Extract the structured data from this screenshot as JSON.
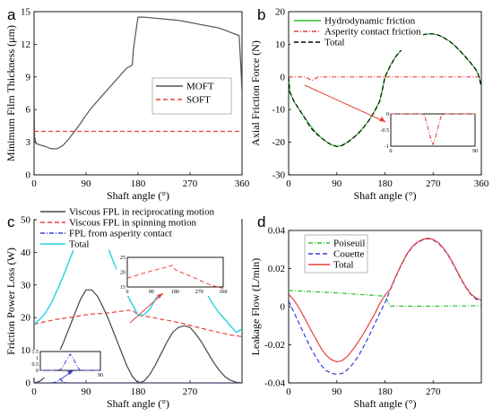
{
  "chart_data": [
    {
      "panel": "a",
      "type": "line",
      "xlabel": "Shaft angle (°)",
      "ylabel": "Minimum Film Thickness (μm)",
      "xlim": [
        0,
        360
      ],
      "ylim": [
        0,
        15
      ],
      "xticks": [
        "0",
        "90",
        "180",
        "270",
        "360"
      ],
      "yticks": [
        "0",
        "3",
        "6",
        "9",
        "12",
        "15"
      ],
      "legend_position": "center-right",
      "colors": {
        "MOFT": "#555555",
        "SOFT": "#e8413c"
      },
      "series": [
        {
          "name": "MOFT",
          "style": "solid",
          "x": [
            0,
            1,
            3,
            10,
            20,
            30,
            40,
            50,
            60,
            70,
            80,
            90,
            100,
            110,
            120,
            130,
            140,
            150,
            160,
            170,
            172,
            178,
            180,
            185,
            190,
            200,
            210,
            220,
            230,
            240,
            250,
            260,
            270,
            280,
            290,
            300,
            310,
            320,
            330,
            340,
            350,
            355,
            358,
            360
          ],
          "y": [
            7.4,
            3.5,
            2.9,
            2.75,
            2.6,
            2.4,
            2.4,
            2.7,
            3.3,
            4.0,
            4.7,
            5.5,
            6.2,
            6.8,
            7.4,
            8.0,
            8.6,
            9.2,
            9.8,
            10.1,
            11.5,
            13.8,
            14.5,
            14.5,
            14.5,
            14.45,
            14.4,
            14.35,
            14.3,
            14.25,
            14.2,
            14.1,
            14.0,
            13.9,
            13.8,
            13.7,
            13.6,
            13.5,
            13.3,
            13.1,
            12.9,
            12.8,
            10.0,
            7.5
          ]
        },
        {
          "name": "SOFT",
          "style": "dashed",
          "x": [
            0,
            360
          ],
          "y": [
            4.0,
            4.0
          ]
        }
      ]
    },
    {
      "panel": "b",
      "type": "line",
      "xlabel": "Shaft angle (°)",
      "ylabel": "Axial Friction Force (N)",
      "xlim": [
        0,
        360
      ],
      "ylim": [
        -30,
        20
      ],
      "xticks": [
        "0",
        "90",
        "180",
        "270",
        "360"
      ],
      "yticks": [
        "-30",
        "-20",
        "-10",
        "0",
        "10",
        "20"
      ],
      "legend_position": "top-left",
      "colors": {
        "Hydrodynamic friction": "#2ec02e",
        "Asperity contact friction": "#e8413c",
        "Total": "#000000"
      },
      "series": [
        {
          "name": "Hydrodynamic friction",
          "style": "solid",
          "x": [
            0,
            2,
            10,
            20,
            30,
            40,
            50,
            60,
            70,
            80,
            90,
            100,
            110,
            120,
            130,
            140,
            150,
            160,
            170,
            175,
            180,
            190,
            200,
            210,
            220,
            230,
            240,
            250,
            260,
            270,
            280,
            290,
            300,
            310,
            320,
            330,
            340,
            350,
            355,
            360
          ],
          "y": [
            0,
            -4.5,
            -7.5,
            -10,
            -12.5,
            -14.8,
            -16.8,
            -18.5,
            -19.8,
            -20.8,
            -21.3,
            -21.0,
            -20.0,
            -18.8,
            -17.3,
            -15.5,
            -13.3,
            -10.7,
            -7.5,
            -4,
            0,
            3.5,
            6.2,
            8.2,
            9.9,
            11.3,
            12.3,
            12.9,
            13.2,
            13.2,
            12.8,
            12.0,
            11.0,
            9.7,
            8.0,
            6.2,
            4.3,
            2.2,
            0.5,
            -3
          ]
        },
        {
          "name": "Asperity contact friction",
          "style": "dashdot",
          "x": [
            0,
            30,
            35,
            40,
            45,
            50,
            55,
            360
          ],
          "y": [
            0,
            0,
            -0.3,
            -0.8,
            -1.0,
            -0.5,
            0,
            0
          ]
        },
        {
          "name": "Total",
          "style": "dashed",
          "x": [
            0,
            2,
            10,
            20,
            30,
            40,
            50,
            60,
            70,
            80,
            90,
            100,
            110,
            120,
            130,
            140,
            150,
            160,
            170,
            175,
            180,
            190,
            200,
            210,
            220,
            230,
            240,
            250,
            260,
            270,
            280,
            290,
            300,
            310,
            320,
            330,
            340,
            350,
            355,
            360
          ],
          "y": [
            0,
            -4.5,
            -7.5,
            -10,
            -12.5,
            -15.3,
            -17.2,
            -18.5,
            -19.8,
            -20.8,
            -21.3,
            -21.0,
            -20.0,
            -18.8,
            -17.3,
            -15.5,
            -13.3,
            -10.7,
            -7.5,
            -4,
            0,
            3.5,
            6.2,
            8.2,
            9.9,
            11.3,
            12.3,
            12.9,
            13.2,
            13.2,
            12.8,
            12.0,
            11.0,
            9.7,
            8.0,
            6.2,
            4.3,
            2.2,
            0.5,
            -3
          ]
        }
      ],
      "inset": {
        "xlim": [
          0,
          90
        ],
        "ylim": [
          -1,
          0
        ],
        "xticks": [
          "0",
          "90"
        ],
        "yticks": [
          "0",
          "-0.5",
          "-1"
        ],
        "x": [
          0,
          3,
          6,
          9,
          12,
          15,
          18,
          21,
          24,
          27,
          30,
          33,
          36,
          39,
          42,
          45,
          48,
          51,
          54,
          57,
          60,
          63,
          66,
          69,
          72,
          75,
          78,
          81,
          84,
          87,
          90
        ],
        "y": [
          0,
          0,
          0,
          0,
          0,
          0,
          0,
          0,
          0,
          0,
          0,
          0,
          -0.05,
          -0.35,
          -0.7,
          -0.95,
          -0.7,
          -0.35,
          -0.05,
          0,
          0,
          0,
          0,
          0,
          0,
          0,
          0,
          0,
          0,
          0,
          0
        ]
      }
    },
    {
      "panel": "c",
      "type": "line",
      "xlabel": "Shaft angle (°)",
      "ylabel": "Friction Power Loss (W)",
      "xlim": [
        0,
        360
      ],
      "ylim": [
        0,
        50
      ],
      "xticks": [
        "0",
        "90",
        "180",
        "270"
      ],
      "yticks": [
        "0",
        "10",
        "20",
        "30",
        "40",
        "50"
      ],
      "legend_position": "top",
      "colors": {
        "Viscous FPL in reciprocating motion": "#444444",
        "Viscous FPL in spinning motion": "#e8413c",
        "FPL from asperity contact": "#3b3bdd",
        "Total": "#22d3e6"
      },
      "series": [
        {
          "name": "Viscous FPL in reciprocating motion",
          "style": "solid",
          "x": [
            0,
            10,
            20,
            30,
            40,
            50,
            60,
            70,
            80,
            90,
            100,
            110,
            120,
            130,
            140,
            150,
            160,
            170,
            180,
            190,
            200,
            210,
            220,
            230,
            240,
            250,
            260,
            270,
            280,
            290,
            300,
            310,
            320,
            330,
            340,
            350,
            360
          ],
          "y": [
            0,
            0.5,
            2,
            4.5,
            8,
            12,
            16.5,
            21,
            25.5,
            28.5,
            28.5,
            26.5,
            23,
            19,
            14.5,
            10,
            5.5,
            2,
            0,
            0.5,
            2.5,
            5.5,
            9,
            12.5,
            15.5,
            17,
            17.5,
            17,
            15,
            12.5,
            9.5,
            6.5,
            4,
            2,
            0.8,
            0.2,
            0
          ]
        },
        {
          "name": "Viscous FPL in spinning motion",
          "style": "dashed",
          "x": [
            0,
            20,
            40,
            60,
            80,
            100,
            120,
            140,
            160,
            170,
            180,
            200,
            220,
            240,
            260,
            280,
            300,
            320,
            340,
            360
          ],
          "y": [
            18,
            18.8,
            19.5,
            20,
            20.6,
            21.1,
            21.3,
            21.7,
            22.2,
            22.3,
            20.8,
            20.2,
            19.5,
            18.9,
            18.1,
            17.2,
            16.3,
            15.5,
            14.7,
            14.2
          ]
        },
        {
          "name": "FPL from asperity contact",
          "style": "dashdot",
          "x": [
            0,
            30,
            40,
            45,
            50,
            60,
            360
          ],
          "y": [
            0,
            0,
            0.3,
            1.2,
            0.3,
            0,
            0
          ]
        },
        {
          "name": "Total",
          "style": "solid",
          "x": [
            0,
            10,
            20,
            30,
            40,
            50,
            60,
            70,
            80,
            90,
            100,
            110,
            120,
            130,
            140,
            150,
            160,
            170,
            180,
            190,
            200,
            210,
            220,
            230,
            240,
            250,
            260,
            270,
            280,
            290,
            300,
            310,
            320,
            330,
            340,
            350,
            360
          ],
          "y": [
            18,
            19.5,
            21.5,
            24.5,
            28.5,
            32.5,
            37,
            41.5,
            46,
            49.5,
            49.5,
            47.5,
            44,
            40.5,
            36,
            32,
            27.5,
            24,
            20.8,
            20.8,
            22.5,
            25.5,
            28.5,
            31.5,
            33.5,
            35,
            35.3,
            34.5,
            32.5,
            30,
            27,
            24,
            21.5,
            19.5,
            17.5,
            15.5,
            16.5
          ]
        }
      ],
      "inset_top": {
        "xlim": [
          0,
          360
        ],
        "ylim": [
          15,
          25
        ],
        "xticks": [
          "0",
          "90",
          "180",
          "270",
          "360"
        ],
        "yticks": [
          "15",
          "20",
          "25"
        ],
        "x": [
          0,
          30,
          60,
          90,
          120,
          150,
          170,
          180,
          200,
          230,
          260,
          290,
          320,
          360
        ],
        "y": [
          18,
          18.8,
          19.6,
          20.4,
          21.1,
          21.8,
          22.3,
          20.8,
          20,
          18.9,
          17.8,
          16.5,
          15.5,
          14.5
        ]
      },
      "inset_bottom": {
        "xlim": [
          0,
          90
        ],
        "ylim": [
          0,
          1.5
        ],
        "xticks": [
          "90"
        ],
        "yticks": [
          "0",
          "0.5",
          "1",
          "1.5"
        ],
        "x": [
          0,
          20,
          30,
          35,
          40,
          45,
          50,
          55,
          60,
          90
        ],
        "y": [
          0,
          0,
          0.05,
          0.4,
          0.9,
          1.3,
          0.9,
          0.3,
          0,
          0
        ]
      }
    },
    {
      "panel": "d",
      "type": "line",
      "xlabel": "Shaft angle (°)",
      "ylabel": "Leakage Flow (L/min)",
      "xlim": [
        0,
        360
      ],
      "ylim": [
        -0.04,
        0.04
      ],
      "xticks": [
        "0",
        "90",
        "180",
        "270"
      ],
      "yticks": [
        "-0.04",
        "-0.02",
        "0",
        "0.02",
        "0.04"
      ],
      "legend_position": "top-left",
      "colors": {
        "Poiseuil": "#2ec02e",
        "Couette": "#3b3bdd",
        "Total": "#e8413c"
      },
      "series": [
        {
          "name": "Poiseuil",
          "style": "dashdot",
          "x": [
            0,
            30,
            60,
            90,
            120,
            150,
            180,
            190,
            270,
            360
          ],
          "y": [
            0.0085,
            0.0081,
            0.0077,
            0.0072,
            0.0067,
            0.0061,
            0.0055,
            0.0003,
            0.0003,
            0.0005
          ]
        },
        {
          "name": "Couette",
          "style": "dashed",
          "x": [
            0,
            10,
            20,
            30,
            40,
            50,
            60,
            70,
            80,
            90,
            100,
            110,
            120,
            130,
            140,
            150,
            160,
            170,
            180,
            190,
            200,
            210,
            220,
            230,
            240,
            250,
            260,
            270,
            280,
            290,
            300,
            310,
            320,
            330,
            340,
            350,
            360
          ],
          "y": [
            0.003,
            -0.003,
            -0.009,
            -0.015,
            -0.021,
            -0.026,
            -0.0305,
            -0.0335,
            -0.035,
            -0.0355,
            -0.035,
            -0.033,
            -0.03,
            -0.026,
            -0.021,
            -0.0155,
            -0.0095,
            -0.0035,
            0.002,
            0.009,
            0.0155,
            0.0215,
            0.027,
            0.031,
            0.0335,
            0.035,
            0.0357,
            0.035,
            0.0332,
            0.0302,
            0.026,
            0.021,
            0.0155,
            0.0105,
            0.0065,
            0.004,
            0.003
          ]
        },
        {
          "name": "Total",
          "style": "solid",
          "x": [
            0,
            10,
            20,
            30,
            40,
            50,
            60,
            70,
            80,
            90,
            100,
            110,
            120,
            130,
            140,
            150,
            160,
            170,
            180,
            190,
            200,
            210,
            220,
            230,
            240,
            250,
            260,
            270,
            280,
            290,
            300,
            310,
            320,
            330,
            340,
            350,
            360
          ],
          "y": [
            0.0065,
            0.0035,
            -0.001,
            -0.006,
            -0.0115,
            -0.0165,
            -0.0215,
            -0.0255,
            -0.0278,
            -0.029,
            -0.0283,
            -0.026,
            -0.0225,
            -0.0185,
            -0.014,
            -0.0092,
            -0.0042,
            0.0015,
            0.006,
            0.0093,
            0.0158,
            0.0218,
            0.0273,
            0.0313,
            0.0338,
            0.0353,
            0.036,
            0.0353,
            0.0335,
            0.0305,
            0.0263,
            0.0213,
            0.0158,
            0.0108,
            0.0068,
            0.0045,
            0.0035
          ]
        }
      ]
    }
  ]
}
